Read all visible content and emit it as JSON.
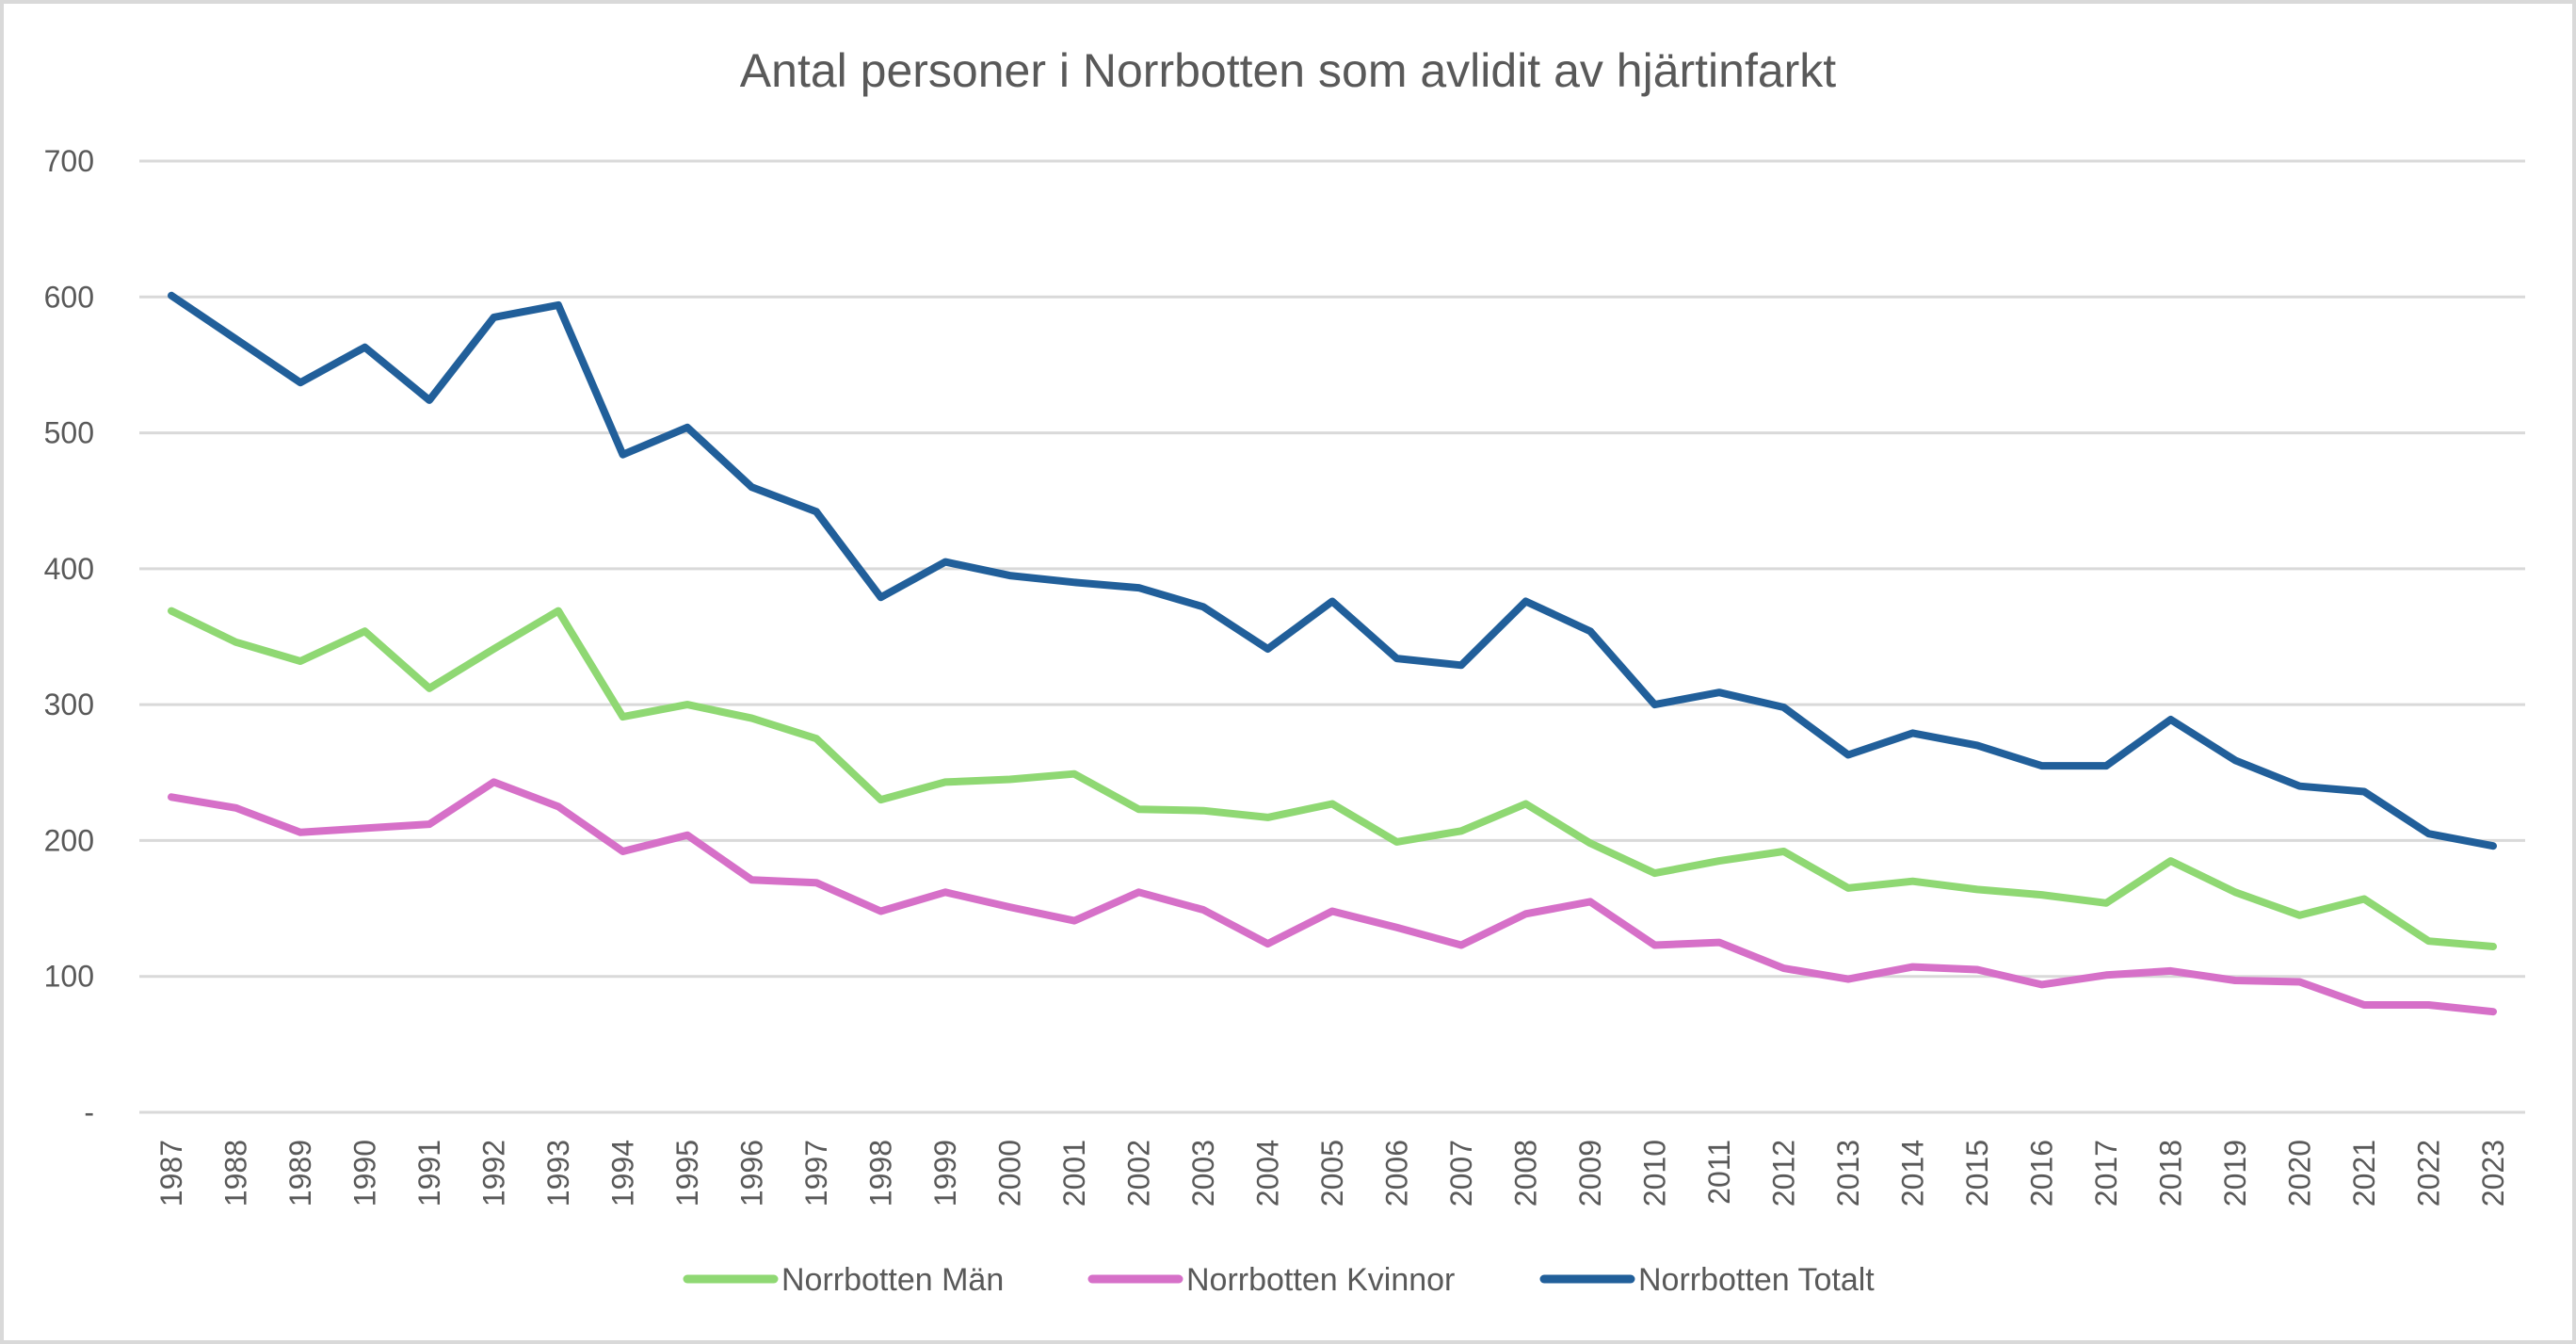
{
  "chart_data": {
    "type": "line",
    "title": "Antal personer i Norrbotten som avlidit av hjärtinfarkt",
    "xlabel": "",
    "ylabel": "",
    "ylim": [
      0,
      700
    ],
    "yticks": [
      0,
      100,
      200,
      300,
      400,
      500,
      600,
      700
    ],
    "ytick_labels": [
      "-",
      "100",
      "200",
      "300",
      "400",
      "500",
      "600",
      "700"
    ],
    "grid": true,
    "legend_position": "bottom",
    "categories": [
      "1987",
      "1988",
      "1989",
      "1990",
      "1991",
      "1992",
      "1993",
      "1994",
      "1995",
      "1996",
      "1997",
      "1998",
      "1999",
      "2000",
      "2001",
      "2002",
      "2003",
      "2004",
      "2005",
      "2006",
      "2007",
      "2008",
      "2009",
      "2010",
      "2011",
      "2012",
      "2013",
      "2014",
      "2015",
      "2016",
      "2017",
      "2018",
      "2019",
      "2020",
      "2021",
      "2022",
      "2023"
    ],
    "series": [
      {
        "name": "Norrbotten Män",
        "color": "#8fd873",
        "values": [
          369,
          346,
          332,
          354,
          312,
          341,
          369,
          291,
          300,
          290,
          275,
          230,
          243,
          245,
          249,
          223,
          222,
          217,
          227,
          199,
          207,
          227,
          198,
          176,
          185,
          192,
          165,
          170,
          164,
          160,
          154,
          185,
          162,
          145,
          157,
          126,
          122
        ]
      },
      {
        "name": "Norrbotten Kvinnor",
        "color": "#d670c8",
        "values": [
          232,
          224,
          206,
          209,
          212,
          243,
          225,
          192,
          204,
          171,
          169,
          148,
          162,
          151,
          141,
          162,
          149,
          124,
          148,
          136,
          123,
          146,
          155,
          123,
          125,
          106,
          98,
          107,
          105,
          94,
          101,
          104,
          97,
          96,
          79,
          79,
          74
        ]
      },
      {
        "name": "Norrbotten Totalt",
        "color": "#215f9a",
        "values": [
          601,
          569,
          537,
          563,
          524,
          585,
          594,
          484,
          504,
          460,
          442,
          379,
          405,
          395,
          390,
          386,
          372,
          341,
          376,
          334,
          329,
          376,
          354,
          300,
          309,
          298,
          263,
          279,
          270,
          255,
          255,
          289,
          259,
          240,
          236,
          205,
          196
        ]
      }
    ]
  }
}
